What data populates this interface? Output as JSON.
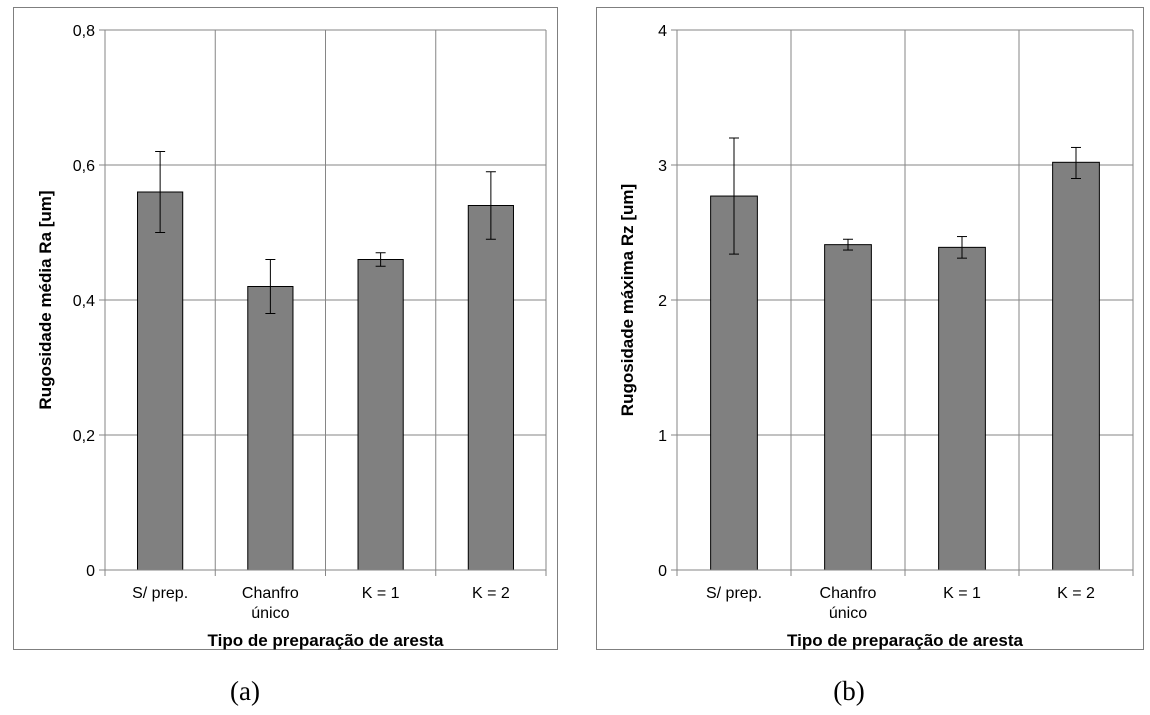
{
  "chart_data": [
    {
      "type": "bar",
      "categories": [
        [
          "S/ prep."
        ],
        [
          "Chanfro",
          "único"
        ],
        [
          "K = 1"
        ],
        [
          "K = 2"
        ]
      ],
      "values": [
        0.56,
        0.42,
        0.46,
        0.54
      ],
      "error_low": [
        0.5,
        0.38,
        0.45,
        0.49
      ],
      "error_high": [
        0.62,
        0.46,
        0.47,
        0.59
      ],
      "xlabel": "Tipo de preparação de aresta",
      "ylabel": "Rugosidade média Ra [um]",
      "ylim": [
        0,
        0.8
      ],
      "ytick_values": [
        0,
        0.2,
        0.4,
        0.6,
        0.8
      ],
      "ytick_labels": [
        "0",
        "0,2",
        "0,4",
        "0,6",
        "0,8"
      ],
      "grid": true,
      "bar_color": "#808080",
      "caption": "(a)"
    },
    {
      "type": "bar",
      "categories": [
        [
          "S/ prep."
        ],
        [
          "Chanfro",
          "único"
        ],
        [
          "K = 1"
        ],
        [
          "K = 2"
        ]
      ],
      "values": [
        2.77,
        2.41,
        2.39,
        3.02
      ],
      "error_low": [
        2.34,
        2.37,
        2.31,
        2.9
      ],
      "error_high": [
        3.2,
        2.45,
        2.47,
        3.13
      ],
      "xlabel": "Tipo de preparação de aresta",
      "ylabel": "Rugosidade máxima Rz [um]",
      "ylim": [
        0,
        4
      ],
      "ytick_values": [
        0,
        1,
        2,
        3,
        4
      ],
      "ytick_labels": [
        "0",
        "1",
        "2",
        "3",
        "4"
      ],
      "grid": true,
      "bar_color": "#808080",
      "caption": "(b)"
    }
  ]
}
